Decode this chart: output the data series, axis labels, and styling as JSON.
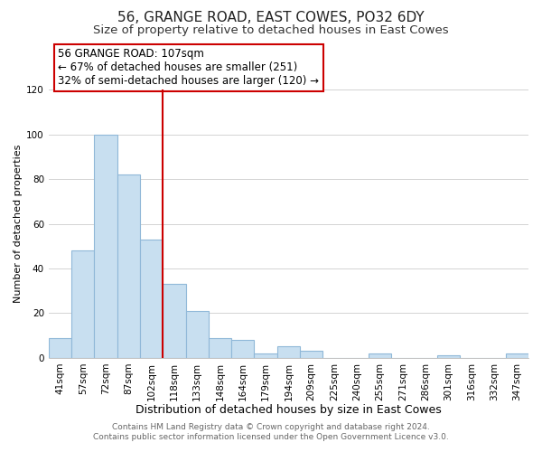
{
  "title": "56, GRANGE ROAD, EAST COWES, PO32 6DY",
  "subtitle": "Size of property relative to detached houses in East Cowes",
  "xlabel": "Distribution of detached houses by size in East Cowes",
  "ylabel": "Number of detached properties",
  "bar_labels": [
    "41sqm",
    "57sqm",
    "72sqm",
    "87sqm",
    "102sqm",
    "118sqm",
    "133sqm",
    "148sqm",
    "164sqm",
    "179sqm",
    "194sqm",
    "209sqm",
    "225sqm",
    "240sqm",
    "255sqm",
    "271sqm",
    "286sqm",
    "301sqm",
    "316sqm",
    "332sqm",
    "347sqm"
  ],
  "bar_values": [
    9,
    48,
    100,
    82,
    53,
    33,
    21,
    9,
    8,
    2,
    5,
    3,
    0,
    0,
    2,
    0,
    0,
    1,
    0,
    0,
    2
  ],
  "bar_color": "#c8dff0",
  "bar_edge_color": "#90b8d8",
  "vline_x_index": 4,
  "vline_color": "#cc0000",
  "annotation_title": "56 GRANGE ROAD: 107sqm",
  "annotation_line1": "← 67% of detached houses are smaller (251)",
  "annotation_line2": "32% of semi-detached houses are larger (120) →",
  "annotation_box_color": "#ffffff",
  "annotation_box_edge": "#cc0000",
  "ylim": [
    0,
    120
  ],
  "yticks": [
    0,
    20,
    40,
    60,
    80,
    100,
    120
  ],
  "background_color": "#ffffff",
  "plot_bg_color": "#ffffff",
  "title_fontsize": 11,
  "subtitle_fontsize": 9.5,
  "xlabel_fontsize": 9,
  "ylabel_fontsize": 8,
  "tick_fontsize": 7.5,
  "annotation_fontsize": 8.5,
  "footer_fontsize": 6.5
}
